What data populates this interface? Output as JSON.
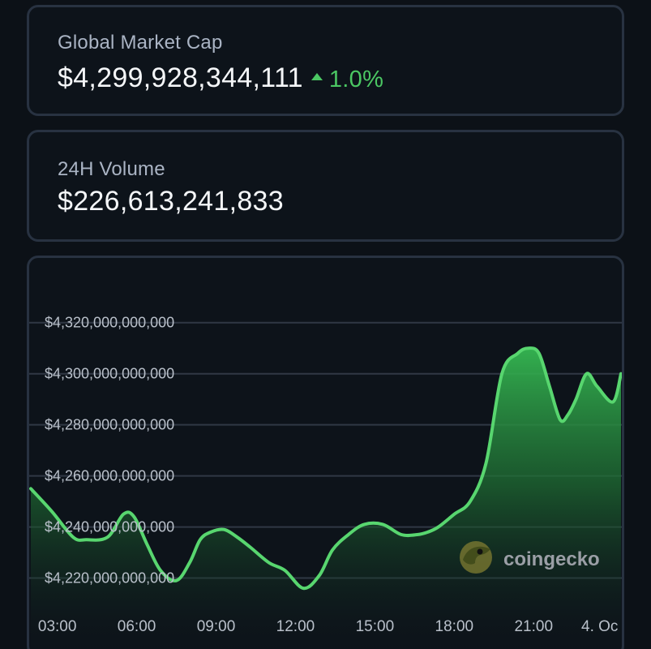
{
  "market_cap": {
    "label": "Global Market Cap",
    "value": "$4,299,928,344,111",
    "change": "1.0%",
    "change_direction_icon": "triangle-up-icon",
    "change_color": "#4bc763"
  },
  "volume": {
    "label": "24H Volume",
    "value": "$226,613,241,833"
  },
  "brand": {
    "logo_icon": "coingecko-logo-icon",
    "text": "coingecko"
  },
  "colors": {
    "background": "#0c1117",
    "card_border": "#283241",
    "line": "#58d66f",
    "gridline": "#303844",
    "axis_text": "#b9c0ca"
  },
  "chart_data": {
    "type": "area",
    "grid": "horizontal",
    "legend": "none",
    "ylim": [
      4210000000000,
      4325000000000
    ],
    "y_ticks": [
      4220000000000,
      4240000000000,
      4260000000000,
      4280000000000,
      4300000000000,
      4320000000000
    ],
    "y_tick_labels": [
      "$4,220,000,000,000",
      "$4,240,000,000,000",
      "$4,260,000,000,000",
      "$4,280,000,000,000",
      "$4,300,000,000,000",
      "$4,320,000,000,000"
    ],
    "x_tick_labels": [
      "03:00",
      "06:00",
      "09:00",
      "12:00",
      "15:00",
      "18:00",
      "21:00",
      "4. Oc"
    ],
    "x_tick_hours": [
      3,
      6,
      9,
      12,
      15,
      18,
      21,
      24
    ],
    "xlim": [
      2,
      24.3
    ],
    "series": [
      {
        "x": [
          2,
          2.8,
          3.6,
          4.1,
          4.9,
          5.5,
          5.9,
          6.4,
          6.9,
          7.5,
          8.0,
          8.4,
          8.8,
          9.3,
          9.8,
          10.3,
          11.0,
          11.6,
          12.3,
          12.9,
          13.4,
          14.0,
          14.6,
          15.3,
          16.0,
          16.6,
          17.0,
          17.4,
          18.0,
          18.6,
          19.2,
          19.8,
          20.4,
          20.8,
          21.2,
          21.6,
          22.0,
          22.3,
          22.6,
          23.0,
          23.4,
          24.0,
          24.3
        ],
        "values": [
          4255000000000,
          4246000000000,
          4236000000000,
          4235000000000,
          4236000000000,
          4245000000000,
          4244000000000,
          4233000000000,
          4223000000000,
          4219000000000,
          4226000000000,
          4235000000000,
          4238000000000,
          4239000000000,
          4236000000000,
          4232000000000,
          4226000000000,
          4223000000000,
          4216000000000,
          4221000000000,
          4231000000000,
          4237000000000,
          4241000000000,
          4241000000000,
          4237000000000,
          4237000000000,
          4238000000000,
          4240000000000,
          4245000000000,
          4250000000000,
          4265000000000,
          4300000000000,
          4308000000000,
          4310000000000,
          4308000000000,
          4295000000000,
          4282000000000,
          4284000000000,
          4290000000000,
          4300000000000,
          4295000000000,
          4289000000000,
          4300000000000
        ]
      }
    ]
  }
}
